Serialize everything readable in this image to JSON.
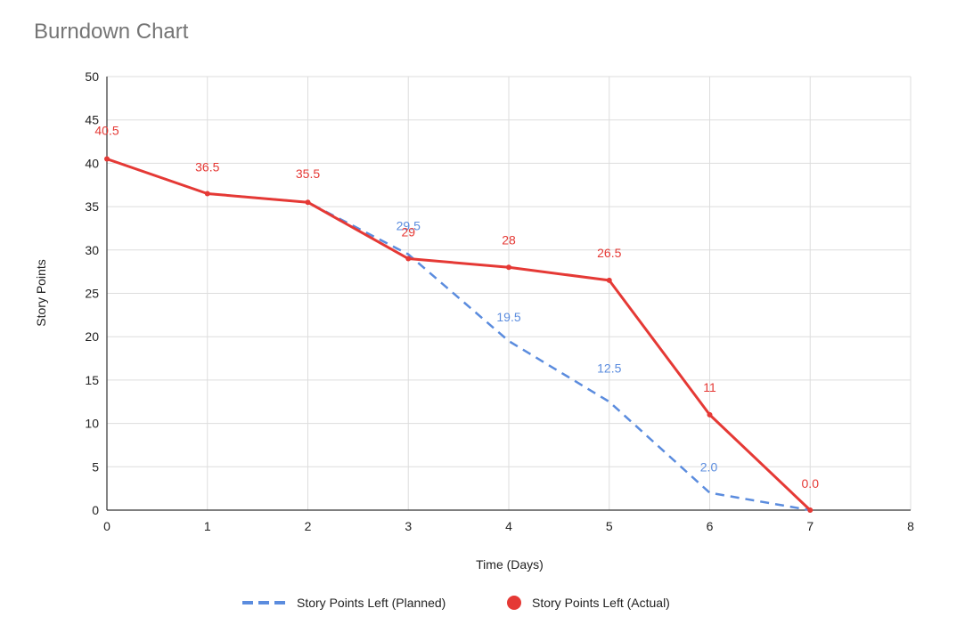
{
  "chart_data": {
    "type": "line",
    "title": "Burndown Chart",
    "xlabel": "Time (Days)",
    "ylabel": "Story Points",
    "xlim": [
      0,
      8
    ],
    "ylim": [
      0,
      50
    ],
    "x_ticks": [
      0,
      1,
      2,
      3,
      4,
      5,
      6,
      7,
      8
    ],
    "y_ticks": [
      0,
      5,
      10,
      15,
      20,
      25,
      30,
      35,
      40,
      45,
      50
    ],
    "grid": true,
    "legend_position": "bottom",
    "series": [
      {
        "name": "Story Points Left (Planned)",
        "color": "#5b8cde",
        "line_style": "dashed",
        "x": [
          0,
          1,
          2,
          3,
          4,
          5,
          6,
          7
        ],
        "values": [
          40.5,
          36.5,
          35.5,
          29.5,
          19.5,
          12.5,
          2.0,
          0
        ],
        "labels": [
          "",
          "",
          "",
          "29.5",
          "19.5",
          "12.5",
          "2.0",
          ""
        ]
      },
      {
        "name": "Story Points Left (Actual)",
        "color": "#e53935",
        "line_style": "solid",
        "markers": true,
        "x": [
          0,
          1,
          2,
          3,
          4,
          5,
          6,
          7
        ],
        "values": [
          40.5,
          36.5,
          35.5,
          29,
          28,
          26.5,
          11,
          0.0
        ],
        "labels": [
          "40.5",
          "36.5",
          "35.5",
          "29",
          "28",
          "26.5",
          "11",
          "0.0"
        ]
      }
    ]
  }
}
